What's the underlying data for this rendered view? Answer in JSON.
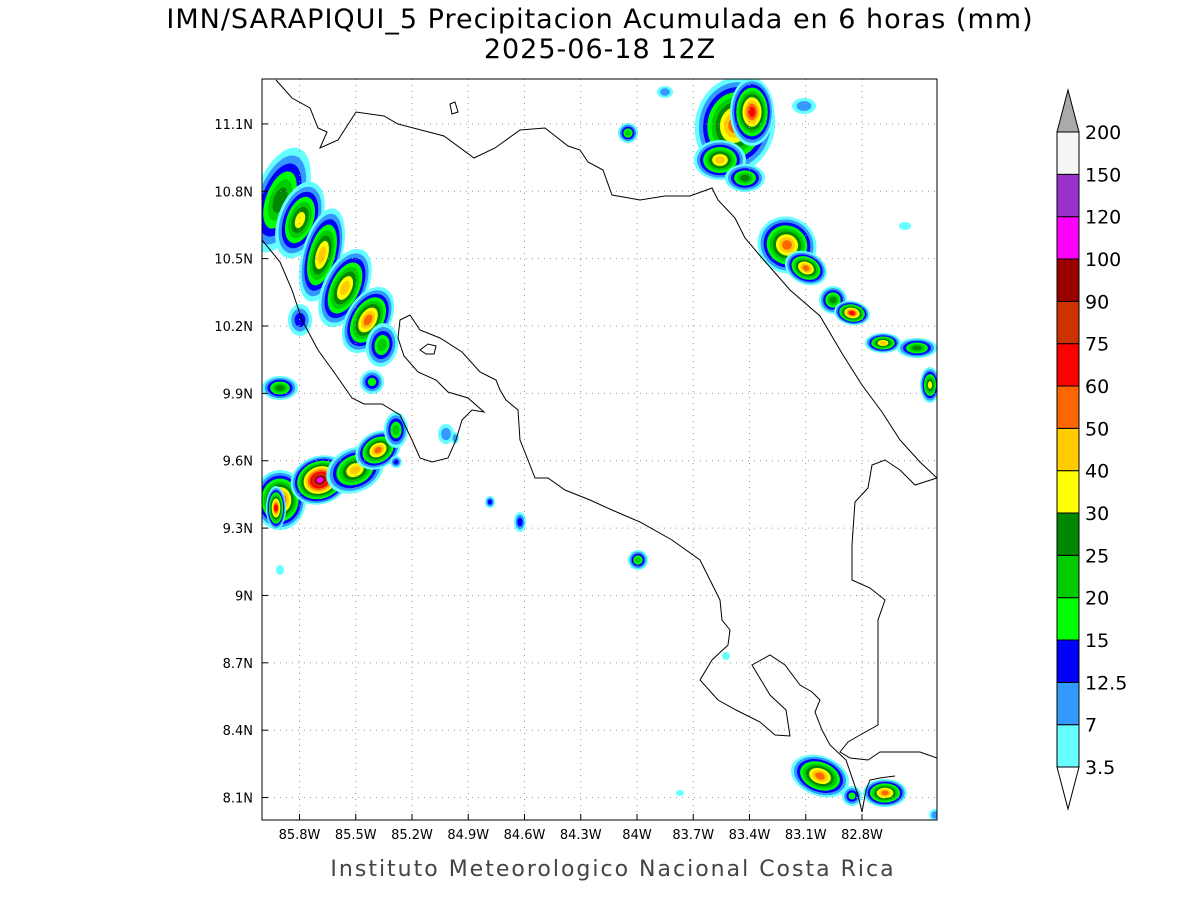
{
  "title_line1": "IMN/SARAPIQUI_5 Precipitacion Acumulada en 6 horas (mm)",
  "title_line2": "2025-06-18 12Z",
  "footer": "Instituto Meteorologico Nacional Costa Rica",
  "map": {
    "lon_range": [
      -86.0,
      -82.4
    ],
    "lat_range": [
      8.0,
      11.3
    ],
    "lon_ticks": [
      {
        "value": -85.8,
        "label": "85.8W"
      },
      {
        "value": -85.5,
        "label": "85.5W"
      },
      {
        "value": -85.2,
        "label": "85.2W"
      },
      {
        "value": -84.9,
        "label": "84.9W"
      },
      {
        "value": -84.6,
        "label": "84.6W"
      },
      {
        "value": -84.3,
        "label": "84.3W"
      },
      {
        "value": -84.0,
        "label": "84W"
      },
      {
        "value": -83.7,
        "label": "83.7W"
      },
      {
        "value": -83.4,
        "label": "83.4W"
      },
      {
        "value": -83.1,
        "label": "83.1W"
      },
      {
        "value": -82.8,
        "label": "82.8W"
      }
    ],
    "lat_ticks": [
      {
        "value": 8.1,
        "label": "8.1N"
      },
      {
        "value": 8.4,
        "label": "8.4N"
      },
      {
        "value": 8.7,
        "label": "8.7N"
      },
      {
        "value": 9.0,
        "label": "9N"
      },
      {
        "value": 9.3,
        "label": "9.3N"
      },
      {
        "value": 9.6,
        "label": "9.6N"
      },
      {
        "value": 9.9,
        "label": "9.9N"
      },
      {
        "value": 10.2,
        "label": "10.2N"
      },
      {
        "value": 10.5,
        "label": "10.5N"
      },
      {
        "value": 10.8,
        "label": "10.8N"
      },
      {
        "value": 11.1,
        "label": "11.1N"
      }
    ],
    "grid": "dotted"
  },
  "colorbar": {
    "levels": [
      "3.5",
      "7",
      "12.5",
      "15",
      "20",
      "25",
      "30",
      "40",
      "50",
      "60",
      "75",
      "90",
      "100",
      "120",
      "150",
      "200"
    ],
    "colors": [
      "#ffffff",
      "#66ffff",
      "#3399ff",
      "#0000ff",
      "#00ff00",
      "#00cc00",
      "#008800",
      "#ffff00",
      "#ffcc00",
      "#ff6600",
      "#ff0000",
      "#cc3300",
      "#990000",
      "#ff00ff",
      "#9933cc",
      "#f5f5f5",
      "#aaaaaa"
    ]
  },
  "colors": {
    "coastline": "#000000",
    "grid": "#999999"
  }
}
